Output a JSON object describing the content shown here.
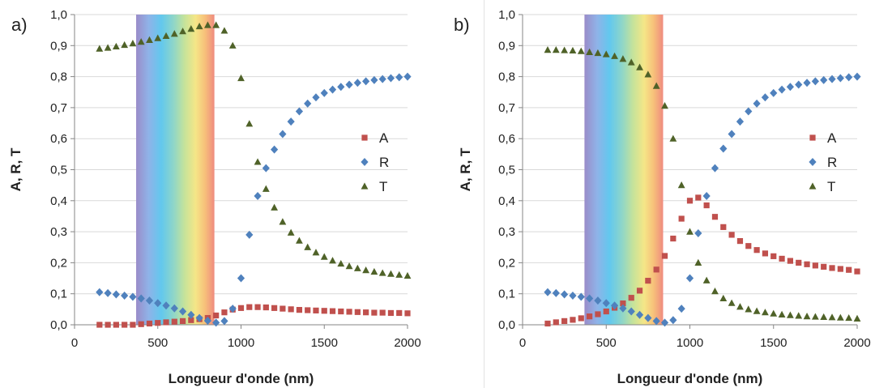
{
  "chart_data": [
    {
      "type": "scatter",
      "panel_label": "a)",
      "title": "",
      "xlabel": "Longueur d'onde (nm)",
      "ylabel": "A, R, T",
      "xlim": [
        0,
        2000
      ],
      "ylim": [
        0,
        1.0
      ],
      "x_ticks": [
        "0",
        "500",
        "1000",
        "1500",
        "2000"
      ],
      "y_ticks": [
        "0,0",
        "0,1",
        "0,2",
        "0,3",
        "0,4",
        "0,5",
        "0,6",
        "0,7",
        "0,8",
        "0,9",
        "1,0"
      ],
      "x_tick_values": [
        0,
        500,
        1000,
        1500,
        2000
      ],
      "y_tick_values": [
        0,
        0.1,
        0.2,
        0.3,
        0.4,
        0.5,
        0.6,
        0.7,
        0.8,
        0.9,
        1.0
      ],
      "grid": "horizontal",
      "legend": "right",
      "visible_band": [
        370,
        840
      ],
      "x": [
        150,
        200,
        250,
        300,
        350,
        400,
        450,
        500,
        550,
        600,
        650,
        700,
        750,
        800,
        850,
        900,
        950,
        1000,
        1050,
        1100,
        1150,
        1200,
        1250,
        1300,
        1350,
        1400,
        1450,
        1500,
        1550,
        1600,
        1650,
        1700,
        1750,
        1800,
        1850,
        1900,
        1950,
        2000
      ],
      "series": [
        {
          "name": "A",
          "marker": "square",
          "color": "#c0504d",
          "values": [
            0.0,
            0.0,
            0.0,
            0.0,
            0.0,
            0.002,
            0.004,
            0.006,
            0.008,
            0.01,
            0.012,
            0.015,
            0.018,
            0.022,
            0.03,
            0.04,
            0.049,
            0.054,
            0.057,
            0.057,
            0.056,
            0.054,
            0.052,
            0.05,
            0.048,
            0.047,
            0.046,
            0.045,
            0.044,
            0.043,
            0.042,
            0.041,
            0.04,
            0.039,
            0.039,
            0.038,
            0.038,
            0.037
          ]
        },
        {
          "name": "R",
          "marker": "diamond",
          "color": "#4f81bd",
          "values": [
            0.105,
            0.102,
            0.098,
            0.094,
            0.09,
            0.085,
            0.078,
            0.07,
            0.062,
            0.053,
            0.043,
            0.032,
            0.022,
            0.013,
            0.007,
            0.012,
            0.052,
            0.15,
            0.29,
            0.415,
            0.505,
            0.565,
            0.615,
            0.655,
            0.688,
            0.713,
            0.733,
            0.747,
            0.758,
            0.767,
            0.774,
            0.78,
            0.785,
            0.789,
            0.792,
            0.795,
            0.798,
            0.8
          ]
        },
        {
          "name": "T",
          "marker": "triangle",
          "color": "#4f6228",
          "values": [
            0.89,
            0.893,
            0.897,
            0.902,
            0.907,
            0.912,
            0.918,
            0.924,
            0.931,
            0.938,
            0.946,
            0.954,
            0.962,
            0.966,
            0.966,
            0.948,
            0.9,
            0.795,
            0.648,
            0.525,
            0.438,
            0.378,
            0.332,
            0.297,
            0.271,
            0.25,
            0.233,
            0.219,
            0.207,
            0.197,
            0.189,
            0.182,
            0.176,
            0.171,
            0.167,
            0.164,
            0.161,
            0.158
          ]
        }
      ]
    },
    {
      "type": "scatter",
      "panel_label": "b)",
      "title": "",
      "xlabel": "Longueur d'onde (nm)",
      "ylabel": "A, R, T",
      "xlim": [
        0,
        2000
      ],
      "ylim": [
        0,
        1.0
      ],
      "x_ticks": [
        "0",
        "500",
        "1000",
        "1500",
        "2000"
      ],
      "y_ticks": [
        "0,0",
        "0,1",
        "0,2",
        "0,3",
        "0,4",
        "0,5",
        "0,6",
        "0,7",
        "0,8",
        "0,9",
        "1,0"
      ],
      "x_tick_values": [
        0,
        500,
        1000,
        1500,
        2000
      ],
      "y_tick_values": [
        0,
        0.1,
        0.2,
        0.3,
        0.4,
        0.5,
        0.6,
        0.7,
        0.8,
        0.9,
        1.0
      ],
      "grid": "horizontal",
      "legend": "right",
      "visible_band": [
        370,
        840
      ],
      "x": [
        150,
        200,
        250,
        300,
        350,
        400,
        450,
        500,
        550,
        600,
        650,
        700,
        750,
        800,
        850,
        900,
        950,
        1000,
        1050,
        1100,
        1150,
        1200,
        1250,
        1300,
        1350,
        1400,
        1450,
        1500,
        1550,
        1600,
        1650,
        1700,
        1750,
        1800,
        1850,
        1900,
        1950,
        2000
      ],
      "series": [
        {
          "name": "A",
          "marker": "square",
          "color": "#c0504d",
          "values": [
            0.004,
            0.008,
            0.012,
            0.016,
            0.021,
            0.027,
            0.034,
            0.043,
            0.055,
            0.069,
            0.087,
            0.11,
            0.142,
            0.178,
            0.222,
            0.278,
            0.342,
            0.4,
            0.41,
            0.385,
            0.348,
            0.315,
            0.29,
            0.27,
            0.254,
            0.241,
            0.23,
            0.221,
            0.213,
            0.206,
            0.2,
            0.195,
            0.191,
            0.187,
            0.183,
            0.18,
            0.177,
            0.172
          ]
        },
        {
          "name": "R",
          "marker": "diamond",
          "color": "#4f81bd",
          "values": [
            0.105,
            0.102,
            0.098,
            0.094,
            0.09,
            0.085,
            0.078,
            0.07,
            0.062,
            0.053,
            0.043,
            0.032,
            0.022,
            0.012,
            0.007,
            0.015,
            0.052,
            0.15,
            0.295,
            0.415,
            0.505,
            0.568,
            0.615,
            0.655,
            0.688,
            0.713,
            0.733,
            0.747,
            0.758,
            0.767,
            0.774,
            0.78,
            0.785,
            0.789,
            0.792,
            0.795,
            0.798,
            0.8
          ]
        },
        {
          "name": "T",
          "marker": "triangle",
          "color": "#4f6228",
          "values": [
            0.886,
            0.886,
            0.885,
            0.884,
            0.882,
            0.879,
            0.876,
            0.872,
            0.866,
            0.857,
            0.846,
            0.83,
            0.807,
            0.77,
            0.706,
            0.6,
            0.45,
            0.3,
            0.2,
            0.143,
            0.108,
            0.085,
            0.07,
            0.058,
            0.05,
            0.044,
            0.04,
            0.036,
            0.033,
            0.031,
            0.029,
            0.027,
            0.026,
            0.025,
            0.024,
            0.023,
            0.022,
            0.02
          ]
        }
      ]
    }
  ]
}
